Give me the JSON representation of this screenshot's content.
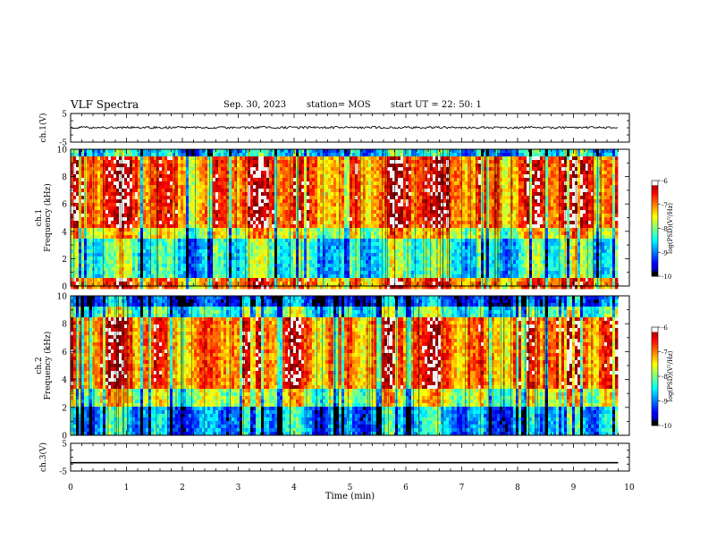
{
  "header": {
    "title": "VLF Spectra",
    "date": "Sep. 30, 2023",
    "station": "station= MOS",
    "start": "start  UT =   22: 50: 1"
  },
  "chart_data": [
    {
      "type": "line",
      "panel": "ch1-waveform",
      "ylabel": "ch.1(V)",
      "ylim": [
        -5,
        5
      ],
      "y_ticks": [
        "5",
        "-5"
      ],
      "xlim": [
        0,
        10
      ],
      "series": [
        {
          "x": [
            0,
            9.8
          ],
          "y": [
            0.1,
            0.1
          ]
        }
      ]
    },
    {
      "type": "heatmap",
      "panel": "ch1-spectrogram",
      "ylabel": "ch.1\nFrequency (kHz)",
      "ylim": [
        0,
        10
      ],
      "y_ticks": [
        "0",
        "2",
        "4",
        "6",
        "8",
        "10"
      ],
      "xlim": [
        0,
        10
      ],
      "data_xmax": 9.8,
      "colorbar": {
        "label": "log(PSD)(V²/Hz)",
        "range": [
          -10,
          -6
        ],
        "ticks": [
          "-6",
          "-7",
          "-8",
          "-9",
          "-10"
        ]
      }
    },
    {
      "type": "heatmap",
      "panel": "ch2-spectrogram",
      "ylabel": "ch.2\nFrequency (kHz)",
      "ylim": [
        0,
        10
      ],
      "y_ticks": [
        "0",
        "2",
        "4",
        "6",
        "8",
        "10"
      ],
      "xlim": [
        0,
        10
      ],
      "data_xmax": 9.8,
      "colorbar": {
        "label": "log(PSD)(V²/Hz)",
        "range": [
          -10,
          -6
        ],
        "ticks": [
          "-6",
          "-7",
          "-8",
          "-9",
          "-10"
        ]
      }
    },
    {
      "type": "line",
      "panel": "ch3-waveform",
      "ylabel": "ch.3(V)",
      "ylim": [
        -5,
        5
      ],
      "y_ticks": [
        "5",
        "-5"
      ],
      "xlim": [
        0,
        10
      ],
      "series": [
        {
          "x": [
            0,
            9.8
          ],
          "y": [
            -2,
            -2
          ]
        }
      ]
    }
  ],
  "x_axis": {
    "label": "Time  (min)",
    "ticks": [
      "0",
      "1",
      "2",
      "3",
      "4",
      "5",
      "6",
      "7",
      "8",
      "9",
      "10"
    ]
  }
}
